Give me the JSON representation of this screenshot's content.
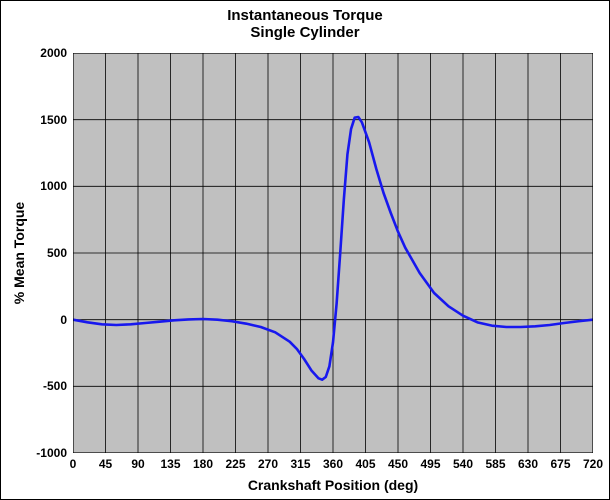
{
  "chart": {
    "type": "line",
    "title_line1": "Instantaneous Torque",
    "title_line2": "Single Cylinder",
    "title_fontsize": 15,
    "xlabel": "Crankshaft Position (deg)",
    "ylabel": "% Mean Torque",
    "label_fontsize": 14,
    "tick_fontsize": 12,
    "xlim": [
      0,
      720
    ],
    "ylim": [
      -1000,
      2000
    ],
    "xticks": [
      0,
      45,
      90,
      135,
      180,
      225,
      270,
      315,
      360,
      405,
      450,
      495,
      540,
      585,
      630,
      675,
      720
    ],
    "yticks": [
      -1000,
      -500,
      0,
      500,
      1000,
      1500,
      2000
    ],
    "background_color": "#ffffff",
    "plot_background_color": "#c0c0c0",
    "grid_color": "#000000",
    "grid_width": 0.8,
    "border_color": "#000000",
    "line_color": "#1818ee",
    "line_width": 2.6,
    "data_x": [
      0,
      20,
      40,
      60,
      80,
      100,
      120,
      140,
      160,
      180,
      200,
      220,
      240,
      260,
      280,
      300,
      310,
      320,
      330,
      340,
      345,
      350,
      355,
      360,
      365,
      370,
      375,
      380,
      385,
      390,
      395,
      400,
      410,
      420,
      430,
      440,
      450,
      460,
      480,
      500,
      520,
      540,
      560,
      580,
      600,
      620,
      640,
      660,
      680,
      700,
      720
    ],
    "data_y": [
      0,
      -20,
      -35,
      -40,
      -35,
      -25,
      -15,
      -5,
      2,
      5,
      0,
      -12,
      -30,
      -55,
      -95,
      -165,
      -220,
      -295,
      -380,
      -440,
      -450,
      -430,
      -350,
      -170,
      120,
      500,
      900,
      1240,
      1430,
      1515,
      1520,
      1480,
      1330,
      1130,
      950,
      800,
      660,
      540,
      350,
      200,
      100,
      30,
      -20,
      -45,
      -55,
      -55,
      -50,
      -40,
      -25,
      -12,
      0
    ]
  }
}
